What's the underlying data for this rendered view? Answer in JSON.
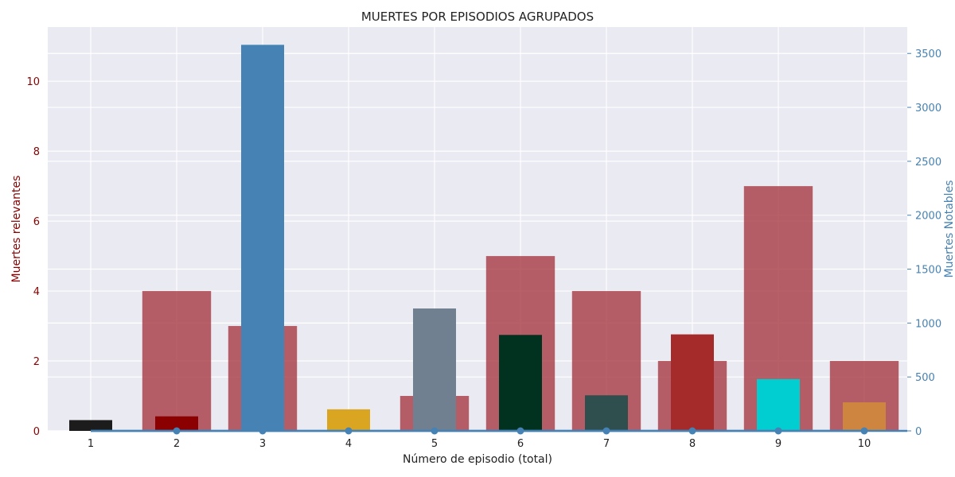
{
  "chart_data": {
    "type": "bar",
    "title": "MUERTES POR EPISODIOS AGRUPADOS",
    "xlabel": "Número de episodio (total)",
    "ylabel": "Muertes relevantes",
    "y2label": "Muertes Notables",
    "categories": [
      "1",
      "2",
      "3",
      "4",
      "5",
      "6",
      "7",
      "8",
      "9",
      "10"
    ],
    "ylim": [
      0,
      11.55
    ],
    "y2lim": [
      0,
      3745
    ],
    "yticks": [
      "0",
      "2",
      "4",
      "6",
      "8",
      "10"
    ],
    "y2ticks": [
      "0",
      "500",
      "1000",
      "1500",
      "2000",
      "2500",
      "3000",
      "3500"
    ],
    "grid": true,
    "series": [
      {
        "axis": "left",
        "kind": "bar-wide",
        "color": "#a83a42",
        "values": [
          0,
          4,
          3,
          0,
          1,
          5,
          4,
          2,
          7,
          2
        ]
      },
      {
        "axis": "right",
        "kind": "bar-narrow",
        "values": [
          100,
          135,
          3580,
          200,
          1135,
          890,
          330,
          895,
          480,
          265
        ],
        "colors": [
          "#1c1c1c",
          "#8b0000",
          "#4682b4",
          "#daa520",
          "#708090",
          "#013220",
          "#2f4f4f",
          "#a52a2a",
          "#00ced1",
          "#cd853f"
        ]
      },
      {
        "axis": "right",
        "kind": "line",
        "color": "#4682b4",
        "values": [
          0,
          0,
          0,
          0,
          0,
          0,
          0,
          0,
          0,
          0
        ]
      }
    ],
    "colors": {
      "left_axis": "#8b0000",
      "right_axis": "#4682b4",
      "plot_bg": "#eaeaf2",
      "grid": "#ffffff"
    }
  }
}
